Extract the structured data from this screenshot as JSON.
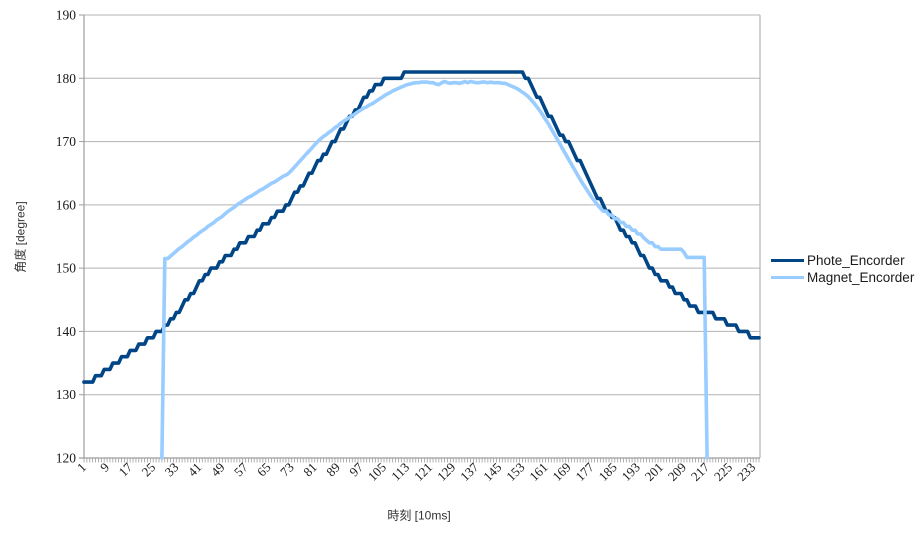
{
  "colors": {
    "background": "#ffffff",
    "grid": "#b3b3b3",
    "axis": "#9e9e9e",
    "tick_label": "#1a1a1a",
    "phote_line": "#004586",
    "magnet_line": "#99ccff"
  },
  "chart_data": {
    "type": "line",
    "title": "",
    "xlabel": "時刻 [10ms]",
    "ylabel": "角度 [degree]",
    "grid": true,
    "legend_position": "right",
    "ylim": [
      120,
      190
    ],
    "y_ticks": [
      120,
      130,
      140,
      150,
      160,
      170,
      180,
      190
    ],
    "x_start": 1,
    "x_step": 1,
    "x_count": 235,
    "x_tick_labels": [
      "1",
      "9",
      "17",
      "25",
      "33",
      "41",
      "49",
      "57",
      "65",
      "73",
      "81",
      "89",
      "97",
      "105",
      "113",
      "121",
      "129",
      "137",
      "145",
      "153",
      "161",
      "169",
      "177",
      "185",
      "193",
      "201",
      "209",
      "217",
      "225",
      "233"
    ],
    "series": [
      {
        "name": "Phote_Encorder",
        "color": "#004586",
        "values": [
          132,
          132,
          132,
          132,
          133,
          133,
          133,
          134,
          134,
          134,
          135,
          135,
          135,
          136,
          136,
          136,
          137,
          137,
          137,
          138,
          138,
          138,
          139,
          139,
          139,
          140,
          140,
          140,
          141,
          141,
          142,
          142,
          143,
          143,
          144,
          145,
          145,
          146,
          146,
          147,
          148,
          148,
          149,
          149,
          150,
          150,
          150,
          151,
          151,
          152,
          152,
          152,
          153,
          153,
          154,
          154,
          154,
          155,
          155,
          155,
          156,
          156,
          157,
          157,
          157,
          158,
          158,
          159,
          159,
          159,
          160,
          160,
          161,
          162,
          162,
          163,
          163,
          164,
          165,
          165,
          166,
          167,
          167,
          168,
          168,
          169,
          170,
          170,
          171,
          172,
          172,
          173,
          174,
          174,
          175,
          175,
          176,
          177,
          177,
          178,
          178,
          179,
          179,
          179,
          180,
          180,
          180,
          180,
          180,
          180,
          180,
          181,
          181,
          181,
          181,
          181,
          181,
          181,
          181,
          181,
          181,
          181,
          181,
          181,
          181,
          181,
          181,
          181,
          181,
          181,
          181,
          181,
          181,
          181,
          181,
          181,
          181,
          181,
          181,
          181,
          181,
          181,
          181,
          181,
          181,
          181,
          181,
          181,
          181,
          181,
          181,
          181,
          181,
          180,
          180,
          179,
          178,
          177,
          177,
          176,
          175,
          174,
          174,
          173,
          172,
          171,
          171,
          170,
          170,
          169,
          168,
          167,
          167,
          166,
          165,
          164,
          163,
          162,
          161,
          161,
          160,
          159,
          159,
          158,
          158,
          157,
          156,
          156,
          155,
          155,
          154,
          154,
          153,
          152,
          152,
          151,
          150,
          150,
          149,
          149,
          148,
          148,
          148,
          147,
          147,
          146,
          146,
          146,
          145,
          145,
          144,
          144,
          144,
          143,
          143,
          143,
          143,
          143,
          143,
          142,
          142,
          142,
          142,
          141,
          141,
          141,
          141,
          140,
          140,
          140,
          140,
          139,
          139,
          139,
          139
        ]
      },
      {
        "name": "Magnet_Encorder",
        "color": "#99ccff",
        "values": [
          null,
          null,
          null,
          null,
          null,
          null,
          null,
          null,
          null,
          null,
          null,
          null,
          null,
          null,
          null,
          null,
          null,
          null,
          null,
          null,
          null,
          null,
          null,
          null,
          null,
          null,
          null,
          120,
          151.5,
          151.5,
          151.9,
          152.3,
          152.7,
          153.1,
          153.4,
          153.8,
          154.2,
          154.5,
          154.9,
          155.2,
          155.6,
          155.9,
          156.2,
          156.6,
          156.9,
          157.2,
          157.6,
          157.9,
          158.2,
          158.6,
          159,
          159.3,
          159.6,
          160,
          160.3,
          160.6,
          160.9,
          161.2,
          161.4,
          161.7,
          162,
          162.3,
          162.5,
          162.8,
          163.1,
          163.4,
          163.6,
          163.9,
          164.2,
          164.5,
          164.7,
          165,
          165.5,
          166,
          166.5,
          167,
          167.5,
          168,
          168.5,
          169,
          169.5,
          170,
          170.4,
          170.8,
          171.1,
          171.5,
          171.8,
          172.2,
          172.5,
          172.9,
          173.2,
          173.5,
          173.8,
          174.1,
          174.4,
          174.7,
          175,
          175.3,
          175.5,
          175.8,
          176,
          176.3,
          176.6,
          176.9,
          177.2,
          177.5,
          177.7,
          178,
          178.2,
          178.4,
          178.6,
          178.8,
          179,
          179.1,
          179.2,
          179.3,
          179.3,
          179.4,
          179.4,
          179.4,
          179.3,
          179.3,
          179.1,
          179.0,
          179.3,
          179.5,
          179.3,
          179.2,
          179.3,
          179.3,
          179.2,
          179.3,
          179.5,
          179.3,
          179.5,
          179.4,
          179.3,
          179.3,
          179.4,
          179.4,
          179.3,
          179.4,
          179.3,
          179.3,
          179.3,
          179.2,
          179.2,
          179.0,
          178.8,
          178.6,
          178.4,
          178.1,
          177.8,
          177.5,
          177.1,
          176.6,
          176.1,
          175.5,
          174.9,
          174.2,
          173.5,
          172.8,
          172,
          171.2,
          170.4,
          169.6,
          168.8,
          168,
          167.2,
          166.4,
          165.6,
          164.8,
          164,
          163.3,
          162.6,
          161.9,
          161.2,
          160.6,
          160,
          159.5,
          159,
          159,
          158.4,
          158.4,
          157.8,
          157.8,
          157.2,
          157.2,
          156.6,
          156.6,
          156,
          156,
          155.4,
          155.4,
          154.8,
          154.4,
          154,
          154,
          153.4,
          153.4,
          153,
          153,
          153,
          153,
          153,
          153,
          153,
          153,
          152.5,
          151.7,
          151.7,
          151.7,
          151.7,
          151.7,
          151.7,
          151.7,
          120,
          null,
          null,
          null,
          null,
          null,
          null,
          null,
          null,
          null,
          null,
          null,
          null,
          null,
          null,
          null,
          null,
          null,
          null
        ]
      }
    ]
  }
}
